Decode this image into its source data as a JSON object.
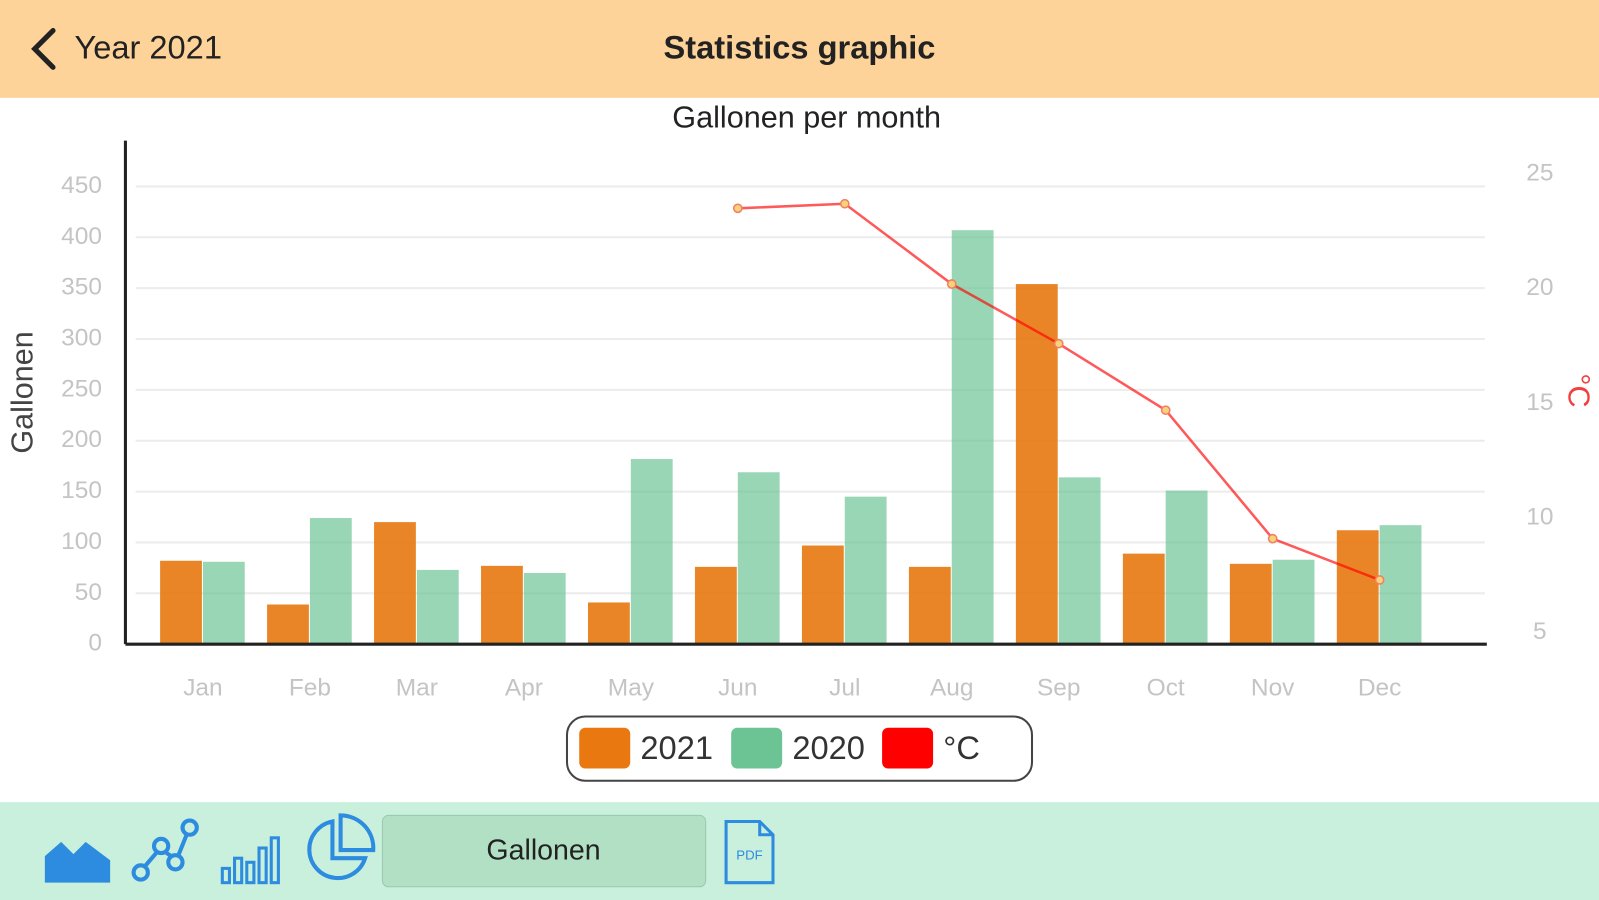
{
  "header": {
    "back": "Year 2021",
    "title": "Statistics graphic"
  },
  "chart_data": {
    "type": "bar",
    "title": "Gallonen per month",
    "y_label": "Gallonen",
    "y2_label": "°C",
    "categories": [
      "Jan",
      "Feb",
      "Mar",
      "Apr",
      "May",
      "Jun",
      "Jul",
      "Aug",
      "Sep",
      "Oct",
      "Nov",
      "Dec"
    ],
    "series": [
      {
        "name": "2021",
        "color": "#e8780f",
        "values": [
          82,
          39,
          120,
          77,
          41,
          76,
          97,
          76,
          354,
          89,
          79,
          112
        ]
      },
      {
        "name": "2020",
        "color": "#6cc495",
        "values": [
          81,
          124,
          73,
          70,
          182,
          169,
          145,
          407,
          164,
          151,
          83,
          117
        ]
      },
      {
        "name": "°C",
        "color": "#ff0000",
        "type": "line",
        "axis": "y2",
        "values": [
          null,
          null,
          null,
          null,
          null,
          23.5,
          23.7,
          20.2,
          17.6,
          14.7,
          9.1,
          7.3
        ]
      }
    ],
    "ylim": [
      0,
      495
    ],
    "yticks": [
      0,
      50,
      100,
      150,
      200,
      250,
      300,
      350,
      400,
      450
    ],
    "y2lim": [
      4.5,
      26.45
    ],
    "y2ticks": [
      5,
      10,
      15,
      20,
      25
    ],
    "grid": true
  },
  "toolbar": {
    "button": "Gallonen",
    "pdf": "PDF"
  }
}
